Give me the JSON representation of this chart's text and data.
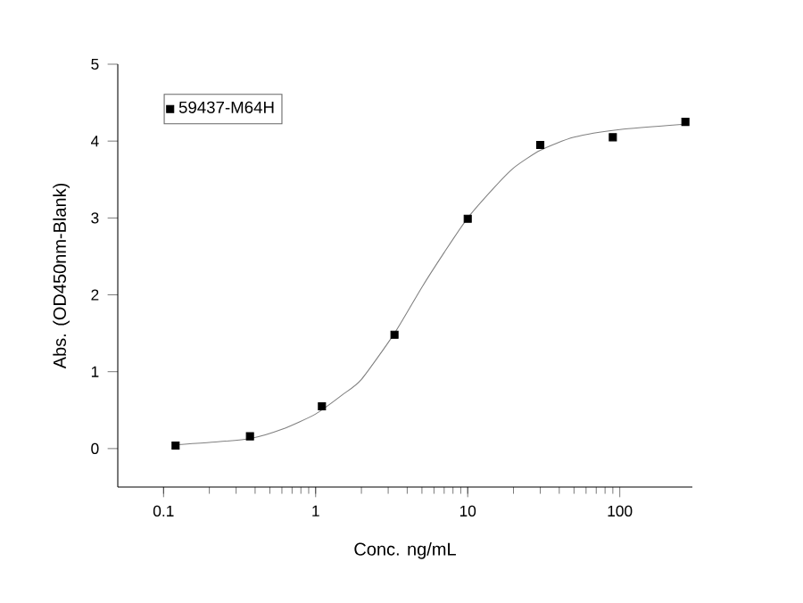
{
  "chart_data": {
    "type": "scatter",
    "xlabel": "Conc. ng/mL",
    "ylabel": "Abs. (OD450nm-Blank)",
    "log": "x",
    "xlim": [
      0.05,
      300
    ],
    "ylim": [
      -0.5,
      5
    ],
    "xticks": [
      0.1,
      1,
      10,
      100
    ],
    "yticks": [
      0,
      1,
      2,
      3,
      4,
      5
    ],
    "legend": "top left",
    "grid": false,
    "series": [
      {
        "name": "59437-M64H",
        "marker": "square",
        "color": "#000000",
        "x": [
          0.12,
          0.37,
          1.1,
          3.3,
          10,
          30,
          90,
          270
        ],
        "values": [
          0.04,
          0.16,
          0.55,
          1.48,
          2.99,
          3.95,
          4.05,
          4.25
        ]
      },
      {
        "type": "line",
        "marker": "none",
        "line_style": "solid",
        "color": "#808080",
        "x": [
          0.12,
          0.2,
          0.37,
          0.6,
          1,
          1.5,
          2,
          3.3,
          5,
          7,
          10,
          15,
          20,
          30,
          50,
          100,
          270
        ],
        "values": [
          0.05,
          0.08,
          0.13,
          0.25,
          0.45,
          0.7,
          0.9,
          1.5,
          2.1,
          2.55,
          3.0,
          3.4,
          3.65,
          3.88,
          4.05,
          4.15,
          4.22
        ]
      }
    ]
  }
}
